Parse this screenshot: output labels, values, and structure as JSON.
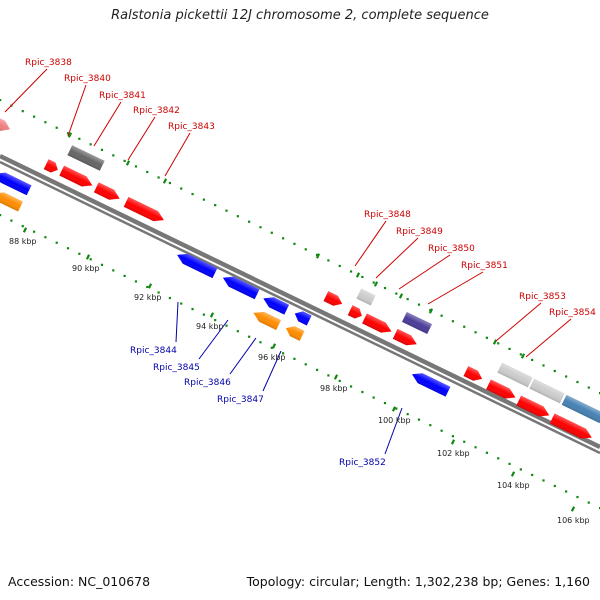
{
  "title": "Ralstonia pickettii 12J chromosome 2, complete sequence",
  "footer": {
    "accession": "Accession: NC_010678",
    "stats": "Topology: circular; Length: 1,302,238 bp; Genes: 1,160"
  },
  "scale": [
    "88 kbp",
    "90 kbp",
    "92 kbp",
    "94 kbp",
    "96 kbp",
    "98 kbp",
    "100 kbp",
    "102 kbp",
    "104 kbp",
    "106 kbp"
  ],
  "colors": {
    "forward_label": "#cc0000",
    "reverse_label": "#0000aa",
    "backbone": "#777777",
    "tick": "#118811",
    "red": "#ff0000",
    "blue": "#0000ff",
    "orange": "#ff8c00",
    "gray": "#666666",
    "light_gray": "#cccccc",
    "purple": "#4b3d99",
    "pink": "#f08080",
    "steel_blue": "#4682b4"
  },
  "forward_labels": [
    "Rpic_3838",
    "Rpic_3840",
    "Rpic_3841",
    "Rpic_3842",
    "Rpic_3843",
    "Rpic_3848",
    "Rpic_3849",
    "Rpic_3850",
    "Rpic_3851",
    "Rpic_3853",
    "Rpic_3854"
  ],
  "reverse_labels": [
    "Rpic_3844",
    "Rpic_3845",
    "Rpic_3846",
    "Rpic_3847",
    "Rpic_3852"
  ]
}
